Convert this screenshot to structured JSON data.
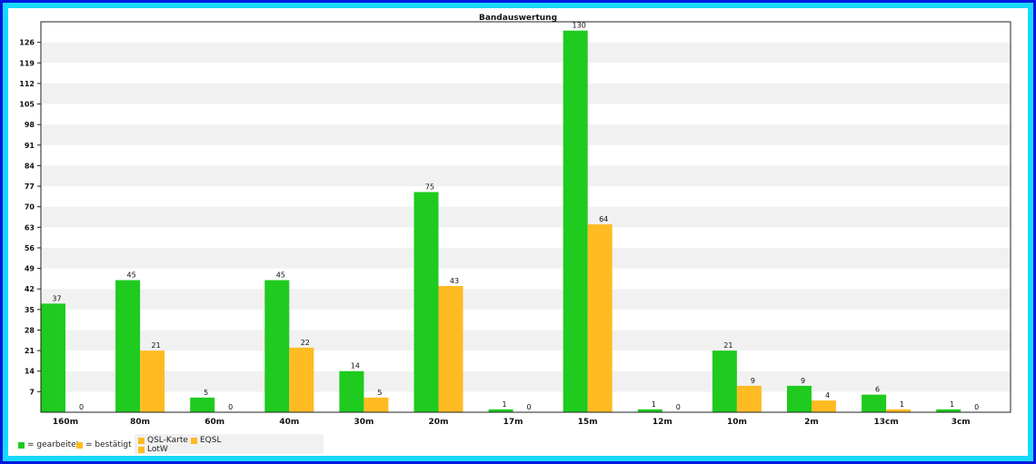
{
  "chart_data": {
    "type": "bar",
    "title": "Bandauswertung",
    "categories": [
      "160m",
      "80m",
      "60m",
      "40m",
      "30m",
      "20m",
      "17m",
      "15m",
      "12m",
      "10m",
      "2m",
      "13cm",
      "3cm"
    ],
    "series": [
      {
        "name": "gearbeitet",
        "color": "#1ecb1e",
        "values": [
          37,
          45,
          5,
          45,
          14,
          75,
          1,
          130,
          1,
          21,
          9,
          6,
          1
        ]
      },
      {
        "name": "bestätigt",
        "color": "#ffbb22",
        "values": [
          0,
          21,
          0,
          22,
          5,
          43,
          0,
          64,
          0,
          9,
          4,
          1,
          0
        ]
      }
    ],
    "y_ticks": [
      7,
      14,
      21,
      28,
      35,
      42,
      49,
      56,
      63,
      70,
      77,
      84,
      91,
      98,
      105,
      112,
      119,
      126
    ],
    "ylim": [
      0,
      133
    ],
    "grid": true,
    "legend": {
      "main": [
        {
          "label": "= gearbeitet",
          "color": "#1ecb1e"
        },
        {
          "label": "= bestätigt",
          "color": "#ffbb22"
        }
      ],
      "sub": [
        {
          "label": "QSL-Karte",
          "color": "#ffbb22"
        },
        {
          "label": "EQSL",
          "color": "#ffbb22"
        },
        {
          "label": "LotW",
          "color": "#ffbb22"
        }
      ]
    }
  }
}
